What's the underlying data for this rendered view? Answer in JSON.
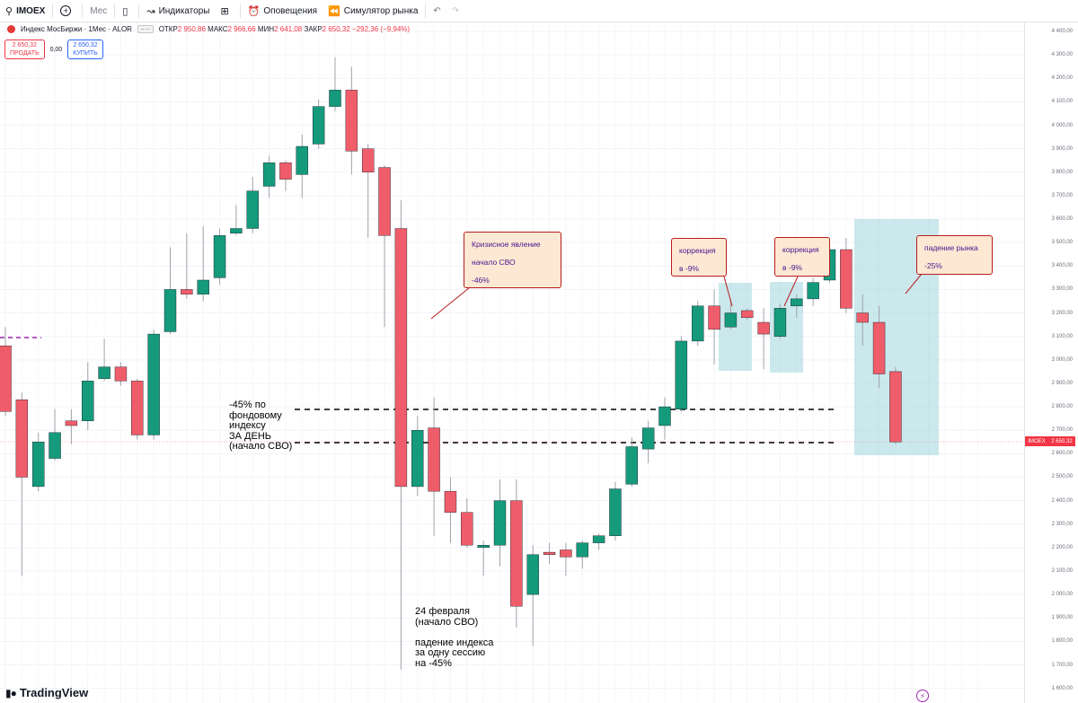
{
  "toolbar": {
    "symbol": "IMOEX",
    "interval": "Мес",
    "indicators": "Индикаторы",
    "alerts": "Оповещения",
    "simulator": "Симулятор рынка"
  },
  "legend": {
    "title": "Индекс МосБиржи · 1Мес · ALOR",
    "open_label": "ОТКР",
    "open": "2 950,86",
    "high_label": "МАКС",
    "high": "2 966,66",
    "low_label": "МИН",
    "low": "2 641,08",
    "close_label": "ЗАКР",
    "close": "2 650,32",
    "change": "−292,36 (−9,94%)"
  },
  "trade": {
    "sell_price": "2 650,32",
    "sell_label": "ПРОДАТЬ",
    "spread": "0,00",
    "buy_price": "2 650,32",
    "buy_label": "КУПИТЬ"
  },
  "price_tag": {
    "symbol": "IMOEX",
    "value": "2 650,32"
  },
  "annotations": {
    "crisis": [
      "Кризисное явление",
      "начало СВО",
      "-46%"
    ],
    "corr1": [
      "коррекция",
      "в -9%"
    ],
    "corr2": [
      "коррекция",
      "в -9%"
    ],
    "fall": [
      "падение рынка",
      "-25%"
    ],
    "left_note": [
      "-45% по",
      "фондовому",
      "индексу",
      "ЗА ДЕНЬ",
      "(начало СВО)"
    ],
    "bottom_note": [
      "24 февраля",
      "(начало СВО)",
      "",
      "падение индекса",
      "за одну сессию",
      "на -45%"
    ]
  },
  "brand": "TradingView",
  "colors": {
    "up": "#159a7c",
    "down": "#f05d6a",
    "highlight": "#a9d8df",
    "callout_bg": "#fde8d4",
    "callout_border": "#b71c1c"
  },
  "chart_data": {
    "type": "candlestick",
    "ylim": [
      1600,
      4400
    ],
    "yticks": [
      1600,
      1700,
      1800,
      1900,
      2000,
      2100,
      2200,
      2300,
      2400,
      2500,
      2600,
      2700,
      2800,
      2900,
      3000,
      3100,
      3200,
      3300,
      3400,
      3500,
      3600,
      3700,
      3800,
      3900,
      4000,
      4100,
      4200,
      4300,
      4400
    ],
    "ytick_labels": [
      "1 600,00",
      "1 700,00",
      "1 800,00",
      "1 900,00",
      "2 000,00",
      "2 100,00",
      "2 200,00",
      "2 300,00",
      "2 400,00",
      "2 500,00",
      "2 600,00",
      "2 700,00",
      "2 800,00",
      "2 900,00",
      "3 000,00",
      "3 100,00",
      "3 200,00",
      "3 300,00",
      "3 400,00",
      "3 500,00",
      "3 600,00",
      "3 700,00",
      "3 800,00",
      "3 900,00",
      "4 000,00",
      "4 100,00",
      "4 200,00",
      "4 300,00",
      "4 400,00"
    ],
    "candles": [
      {
        "o": 3060,
        "h": 3140,
        "l": 2760,
        "c": 2780
      },
      {
        "o": 2830,
        "h": 2860,
        "l": 2080,
        "c": 2500
      },
      {
        "o": 2460,
        "h": 2690,
        "l": 2440,
        "c": 2650
      },
      {
        "o": 2580,
        "h": 2790,
        "l": 2570,
        "c": 2690
      },
      {
        "o": 2740,
        "h": 2790,
        "l": 2640,
        "c": 2720
      },
      {
        "o": 2740,
        "h": 2990,
        "l": 2700,
        "c": 2910
      },
      {
        "o": 2920,
        "h": 3090,
        "l": 2910,
        "c": 2970
      },
      {
        "o": 2970,
        "h": 2990,
        "l": 2890,
        "c": 2910
      },
      {
        "o": 2910,
        "h": 2920,
        "l": 2660,
        "c": 2680
      },
      {
        "o": 2680,
        "h": 3130,
        "l": 2660,
        "c": 3110
      },
      {
        "o": 3120,
        "h": 3480,
        "l": 3110,
        "c": 3300
      },
      {
        "o": 3300,
        "h": 3540,
        "l": 3260,
        "c": 3280
      },
      {
        "o": 3280,
        "h": 3570,
        "l": 3250,
        "c": 3340
      },
      {
        "o": 3350,
        "h": 3560,
        "l": 3320,
        "c": 3530
      },
      {
        "o": 3540,
        "h": 3660,
        "l": 3530,
        "c": 3560
      },
      {
        "o": 3560,
        "h": 3780,
        "l": 3540,
        "c": 3720
      },
      {
        "o": 3740,
        "h": 3870,
        "l": 3690,
        "c": 3840
      },
      {
        "o": 3840,
        "h": 3850,
        "l": 3720,
        "c": 3770
      },
      {
        "o": 3790,
        "h": 3960,
        "l": 3690,
        "c": 3910
      },
      {
        "o": 3920,
        "h": 4110,
        "l": 3900,
        "c": 4080
      },
      {
        "o": 4080,
        "h": 4290,
        "l": 4060,
        "c": 4150
      },
      {
        "o": 4150,
        "h": 4250,
        "l": 3790,
        "c": 3890
      },
      {
        "o": 3900,
        "h": 3920,
        "l": 3520,
        "c": 3800
      },
      {
        "o": 3820,
        "h": 3830,
        "l": 3140,
        "c": 3530
      },
      {
        "o": 3560,
        "h": 3680,
        "l": 1680,
        "c": 2460
      },
      {
        "o": 2460,
        "h": 2760,
        "l": 2420,
        "c": 2700
      },
      {
        "o": 2710,
        "h": 2840,
        "l": 2250,
        "c": 2440
      },
      {
        "o": 2440,
        "h": 2500,
        "l": 2220,
        "c": 2350
      },
      {
        "o": 2350,
        "h": 2410,
        "l": 2200,
        "c": 2210
      },
      {
        "o": 2200,
        "h": 2230,
        "l": 2080,
        "c": 2210
      },
      {
        "o": 2210,
        "h": 2490,
        "l": 2120,
        "c": 2400
      },
      {
        "o": 2400,
        "h": 2490,
        "l": 1860,
        "c": 1950
      },
      {
        "o": 2000,
        "h": 2210,
        "l": 1780,
        "c": 2170
      },
      {
        "o": 2180,
        "h": 2220,
        "l": 2130,
        "c": 2170
      },
      {
        "o": 2190,
        "h": 2220,
        "l": 2080,
        "c": 2160
      },
      {
        "o": 2160,
        "h": 2230,
        "l": 2110,
        "c": 2220
      },
      {
        "o": 2220,
        "h": 2260,
        "l": 2190,
        "c": 2250
      },
      {
        "o": 2250,
        "h": 2480,
        "l": 2230,
        "c": 2450
      },
      {
        "o": 2470,
        "h": 2670,
        "l": 2460,
        "c": 2630
      },
      {
        "o": 2620,
        "h": 2740,
        "l": 2560,
        "c": 2710
      },
      {
        "o": 2720,
        "h": 2840,
        "l": 2660,
        "c": 2800
      },
      {
        "o": 2790,
        "h": 3100,
        "l": 2780,
        "c": 3080
      },
      {
        "o": 3080,
        "h": 3250,
        "l": 3060,
        "c": 3230
      },
      {
        "o": 3230,
        "h": 3300,
        "l": 2980,
        "c": 3130
      },
      {
        "o": 3140,
        "h": 3260,
        "l": 3130,
        "c": 3200
      },
      {
        "o": 3210,
        "h": 3220,
        "l": 3170,
        "c": 3180
      },
      {
        "o": 3160,
        "h": 3220,
        "l": 2960,
        "c": 3110
      },
      {
        "o": 3100,
        "h": 3240,
        "l": 3090,
        "c": 3220
      },
      {
        "o": 3230,
        "h": 3280,
        "l": 3180,
        "c": 3260
      },
      {
        "o": 3260,
        "h": 3350,
        "l": 3230,
        "c": 3330
      },
      {
        "o": 3340,
        "h": 3480,
        "l": 3330,
        "c": 3470
      },
      {
        "o": 3470,
        "h": 3520,
        "l": 3200,
        "c": 3220
      },
      {
        "o": 3200,
        "h": 3280,
        "l": 3060,
        "c": 3160
      },
      {
        "o": 3160,
        "h": 3230,
        "l": 2880,
        "c": 2940
      },
      {
        "o": 2950,
        "h": 2970,
        "l": 2640,
        "c": 2650
      }
    ]
  }
}
